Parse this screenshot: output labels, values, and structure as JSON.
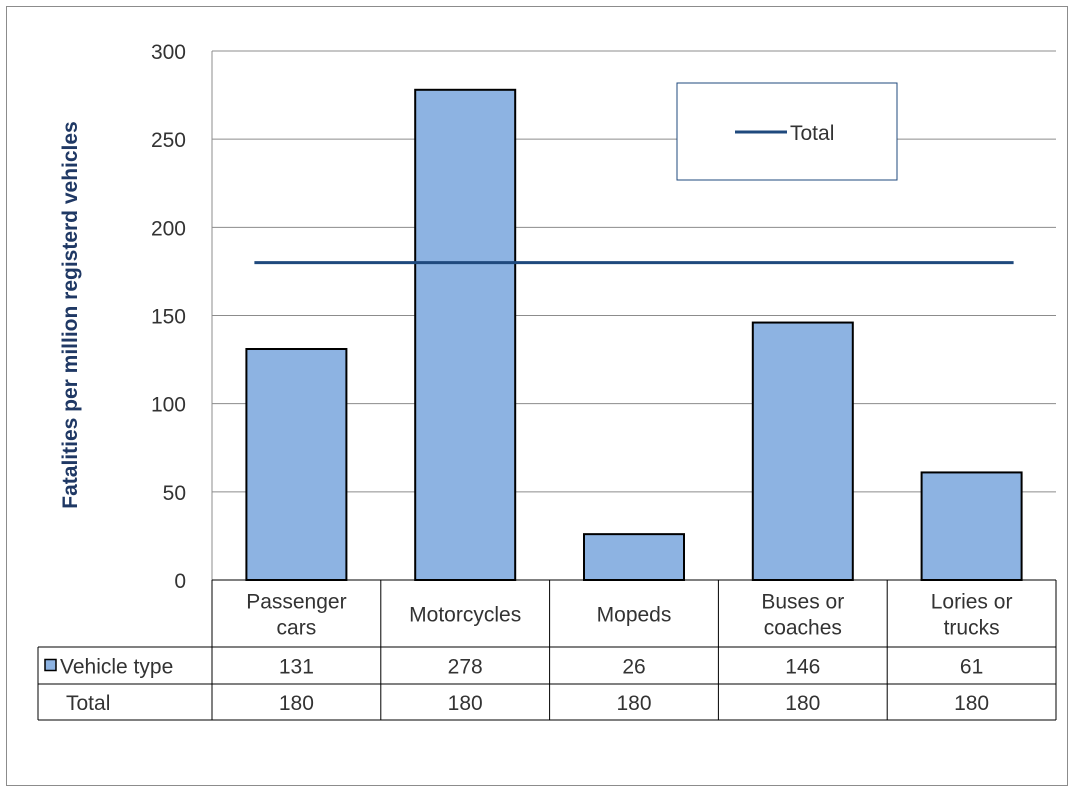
{
  "chart_data": {
    "type": "bar",
    "title": "",
    "xlabel": "",
    "ylabel": "Fatalities per million registerd vehicles",
    "ylim": [
      0,
      300
    ],
    "yticks": [
      0,
      50,
      100,
      150,
      200,
      250,
      300
    ],
    "grid": true,
    "legend_position": "top-right",
    "categories": [
      [
        "Passenger",
        "cars"
      ],
      [
        "Motorcycles"
      ],
      [
        "Mopeds"
      ],
      [
        "Buses or",
        "coaches"
      ],
      [
        "Lories or",
        "trucks"
      ]
    ],
    "series": [
      {
        "name": "Vehicle type",
        "type": "bar",
        "values": [
          131,
          278,
          26,
          146,
          61
        ]
      },
      {
        "name": "Total",
        "type": "line",
        "values": [
          180,
          180,
          180,
          180,
          180
        ]
      }
    ],
    "data_table": true
  },
  "colors": {
    "bar_fill": "#8db3e2",
    "bar_stroke": "#000000",
    "line": "#1f497d",
    "axis_text": "#333333",
    "gridline": "#8c8c8c",
    "ylabel": "#1f3864"
  }
}
